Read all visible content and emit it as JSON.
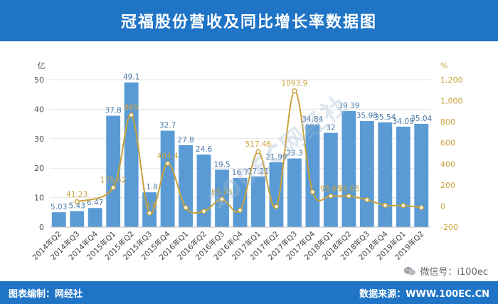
{
  "title": "冠福股份营收及同比增长率数据图",
  "footer": {
    "left": "图表编制：网经社",
    "right": "数据来源：WWW.100EC.CN"
  },
  "wechat": {
    "text": "微信号：i100ec",
    "icon": "wechat-icon"
  },
  "watermark": "100EC网经社",
  "colors": {
    "bar": "#5b9bd5",
    "line": "#c9a23a",
    "header": "#1f74c5"
  },
  "chart_data": {
    "type": "bar",
    "title": "冠福股份营收及同比增长率数据图",
    "categories": [
      "2014年Q2",
      "2014年Q3",
      "2014年Q4",
      "2015年Q1",
      "2015年Q2",
      "2015年Q3",
      "2015年Q4",
      "2016年Q1",
      "2016年Q2",
      "2016年Q3",
      "2016年Q4",
      "2017年Q1",
      "2017年Q2",
      "2017年Q3",
      "2017年Q4",
      "2018年Q1",
      "2018年Q2",
      "2018年Q3",
      "2018年Q4",
      "2019年Q1",
      "2019年Q2"
    ],
    "left_axis": {
      "unit": "亿",
      "ylim": [
        0,
        50
      ],
      "ticks": [
        "0",
        "10",
        "20",
        "30",
        "40",
        "50"
      ]
    },
    "right_axis": {
      "unit": "%",
      "ylim": [
        -200,
        1200
      ],
      "ticks": [
        "-200",
        "0",
        "200",
        "400",
        "600",
        "800",
        "1,000",
        "1,200"
      ]
    },
    "series": [
      {
        "type": "bar",
        "values": [
          5.03,
          5.43,
          6.47,
          37.8,
          49.1,
          11.8,
          32.7,
          27.8,
          24.6,
          19.5,
          16.7,
          17.21,
          21.99,
          23.3,
          34.84,
          32,
          39.39,
          35.98,
          35.54,
          34.09,
          35.04
        ],
        "labels": [
          "5.03",
          "5.43",
          "6.47",
          "37.8",
          "49.1",
          "11.8",
          "32.7",
          "27.8",
          "24.6",
          "19.5",
          "16.7",
          "17.21",
          "21.99",
          "23.3",
          "34.84",
          "32",
          "39.39",
          "35.98",
          "35.54",
          "34.09",
          "35.04"
        ]
      },
      {
        "type": "line",
        "axis": "right",
        "values": [
          null,
          41.23,
          null,
          175.52,
          865,
          -67,
          404.4,
          -15,
          -50,
          65.25,
          -40,
          517.46,
          -5,
          1093.9,
          135,
          95.65,
          95.05,
          60,
          7,
          5,
          -15
        ],
        "labels": [
          "",
          "41.23",
          "",
          "175.52",
          "865",
          "-67",
          "404.4",
          "",
          "",
          "65.25",
          "",
          "517.46",
          "",
          "1093.9",
          "",
          "95.65",
          "95.05",
          "",
          "",
          "",
          ""
        ]
      }
    ],
    "grid": true,
    "legend": "none"
  }
}
